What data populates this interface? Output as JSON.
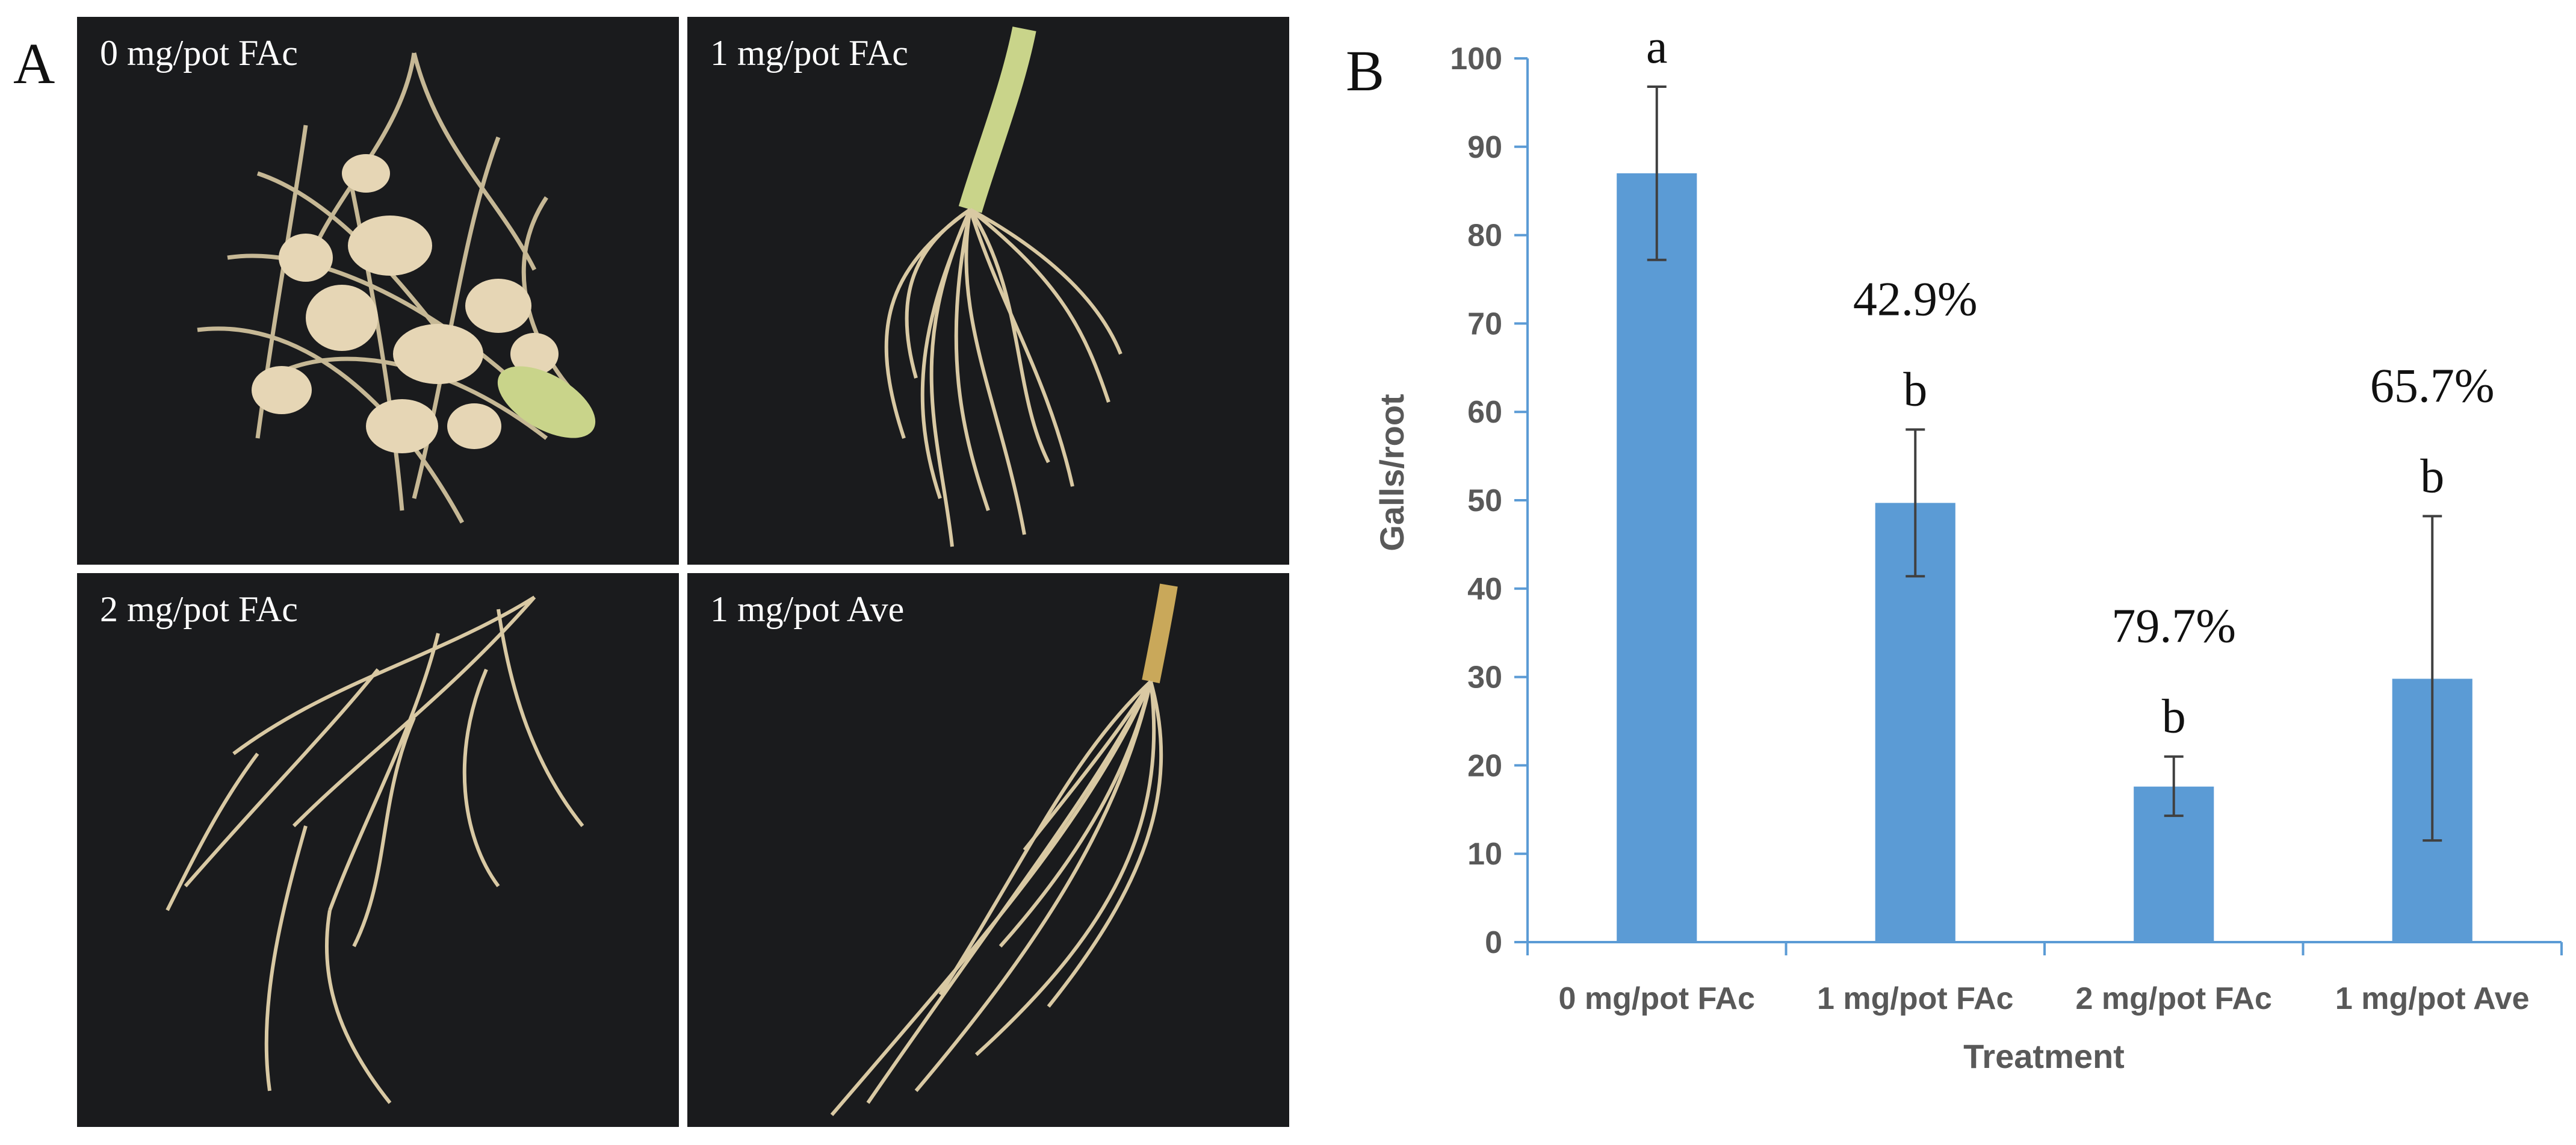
{
  "panels": {
    "a_letter": "A",
    "b_letter": "B",
    "photos": [
      {
        "label": "0 mg/pot FAc",
        "root": "galled"
      },
      {
        "label": "1 mg/pot FAc",
        "root": "fibrous"
      },
      {
        "label": "2 mg/pot FAc",
        "root": "spread"
      },
      {
        "label": "1 mg/pot Ave",
        "root": "fibrous"
      }
    ]
  },
  "colors": {
    "bar": "#5b9bd5",
    "photo_bg": "#1a1b1d",
    "root": "#d9c9a3",
    "axis": "#5b9bd5",
    "tick_text": "#595959"
  },
  "chart_data": {
    "type": "bar",
    "xlabel": "Treatment",
    "ylabel": "Galls/root",
    "ylim": [
      0,
      100
    ],
    "yticks": [
      0,
      10,
      20,
      30,
      40,
      50,
      60,
      70,
      80,
      90,
      100
    ],
    "categories": [
      "0 mg/pot FAc",
      "1 mg/pot FAc",
      "2 mg/pot FAc",
      "1 mg/pot Ave"
    ],
    "values": [
      87,
      49.7,
      17.6,
      29.8
    ],
    "error_low": [
      77.2,
      41.4,
      14.3,
      11.5
    ],
    "error_high": [
      96.8,
      58.0,
      21.0,
      48.2
    ],
    "letters": [
      "a",
      "b",
      "b",
      "b"
    ],
    "percent_labels": [
      "",
      "42.9%",
      "79.7%",
      "65.7%"
    ],
    "grid": false
  }
}
